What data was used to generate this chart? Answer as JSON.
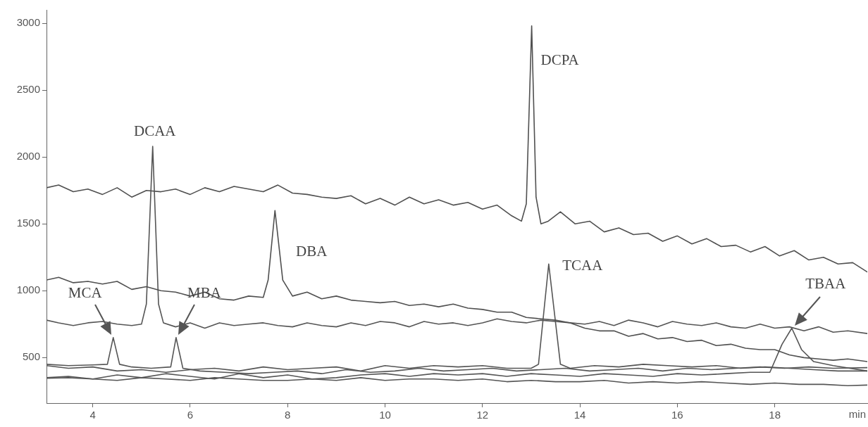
{
  "chart_data": {
    "type": "line",
    "xlabel": "min",
    "xlim": [
      3.05,
      19.9
    ],
    "ylim": [
      160,
      3100
    ],
    "xticks": [
      4,
      6,
      8,
      10,
      12,
      14,
      16,
      18
    ],
    "yticks": [
      500,
      1000,
      1500,
      2000,
      2500,
      3000
    ],
    "grid": false,
    "legend": false,
    "marker": "none",
    "line_style": "solid",
    "series": [
      {
        "color": "#505050",
        "x": [
          3.05,
          3.3,
          3.6,
          3.9,
          4.2,
          4.5,
          4.8,
          5.1,
          5.4,
          5.7,
          6,
          6.3,
          6.6,
          6.9,
          7.2,
          7.5,
          7.8,
          8.1,
          8.4,
          8.7,
          9,
          9.3,
          9.6,
          9.9,
          10.2,
          10.5,
          10.8,
          11.1,
          11.4,
          11.7,
          12,
          12.3,
          12.6,
          12.8,
          12.9,
          13.01,
          13.1,
          13.2,
          13.35,
          13.6,
          13.9,
          14.2,
          14.5,
          14.8,
          15.1,
          15.4,
          15.7,
          16,
          16.3,
          16.6,
          16.9,
          17.2,
          17.5,
          17.8,
          18.1,
          18.4,
          18.7,
          19,
          19.3,
          19.6,
          19.9
        ],
        "values": [
          1770,
          1790,
          1740,
          1760,
          1720,
          1770,
          1700,
          1750,
          1740,
          1760,
          1720,
          1770,
          1740,
          1780,
          1760,
          1740,
          1790,
          1730,
          1720,
          1700,
          1690,
          1710,
          1650,
          1690,
          1640,
          1700,
          1650,
          1680,
          1640,
          1660,
          1610,
          1640,
          1560,
          1520,
          1650,
          2980,
          1700,
          1500,
          1520,
          1590,
          1500,
          1520,
          1440,
          1470,
          1420,
          1430,
          1370,
          1410,
          1350,
          1390,
          1330,
          1340,
          1290,
          1330,
          1260,
          1300,
          1230,
          1250,
          1200,
          1210,
          1140
        ]
      },
      {
        "color": "#505050",
        "x": [
          3.05,
          3.3,
          3.6,
          3.9,
          4.2,
          4.5,
          4.8,
          5.1,
          5.4,
          5.7,
          6,
          6.3,
          6.6,
          6.9,
          7.2,
          7.5,
          7.6,
          7.74,
          7.9,
          8.1,
          8.4,
          8.7,
          9,
          9.3,
          9.6,
          9.9,
          10.2,
          10.5,
          10.8,
          11.1,
          11.4,
          11.7,
          12,
          12.3,
          12.6,
          12.9,
          13.2,
          13.5,
          13.8,
          14.1,
          14.4,
          14.7,
          15,
          15.3,
          15.6,
          15.9,
          16.2,
          16.5,
          16.8,
          17.1,
          17.4,
          17.7,
          18,
          18.3,
          18.6,
          18.9,
          19.2,
          19.5,
          19.9
        ],
        "values": [
          1080,
          1100,
          1060,
          1070,
          1050,
          1070,
          1010,
          1030,
          1000,
          990,
          960,
          990,
          940,
          930,
          960,
          950,
          1080,
          1600,
          1080,
          960,
          990,
          940,
          960,
          930,
          920,
          910,
          920,
          890,
          900,
          880,
          900,
          870,
          860,
          840,
          840,
          800,
          790,
          780,
          760,
          720,
          700,
          700,
          660,
          680,
          640,
          650,
          620,
          630,
          590,
          600,
          570,
          560,
          560,
          520,
          500,
          490,
          480,
          490,
          470
        ]
      },
      {
        "color": "#555555",
        "x": [
          3.05,
          3.3,
          3.6,
          3.9,
          4.2,
          4.5,
          4.8,
          5.0,
          5.1,
          5.23,
          5.35,
          5.45,
          5.7,
          6,
          6.3,
          6.6,
          6.9,
          7.2,
          7.5,
          7.8,
          8.1,
          8.4,
          8.7,
          9,
          9.3,
          9.6,
          9.9,
          10.2,
          10.5,
          10.8,
          11.1,
          11.4,
          11.7,
          12,
          12.3,
          12.6,
          12.9,
          13.2,
          13.5,
          13.8,
          14.1,
          14.4,
          14.7,
          15,
          15.3,
          15.6,
          15.9,
          16.2,
          16.5,
          16.8,
          17.1,
          17.4,
          17.7,
          18,
          18.3,
          18.6,
          18.9,
          19.2,
          19.5,
          19.9
        ],
        "values": [
          780,
          760,
          740,
          760,
          770,
          750,
          740,
          750,
          900,
          2080,
          900,
          760,
          730,
          760,
          720,
          760,
          740,
          750,
          760,
          740,
          730,
          760,
          740,
          730,
          760,
          740,
          770,
          760,
          730,
          770,
          750,
          760,
          740,
          760,
          790,
          770,
          760,
          780,
          770,
          760,
          750,
          770,
          740,
          780,
          760,
          730,
          770,
          750,
          740,
          760,
          730,
          720,
          750,
          720,
          730,
          700,
          730,
          690,
          700,
          680
        ]
      },
      {
        "color": "#555555",
        "x": [
          3.05,
          3.5,
          4,
          4.3,
          4.42,
          4.55,
          4.8,
          5.2,
          5.6,
          5.71,
          5.85,
          6.2,
          6.7,
          7.2,
          7.7,
          8.2,
          8.7,
          9.2,
          9.7,
          10.2,
          10.7,
          11.2,
          11.7,
          12.2,
          12.7,
          13.2,
          13.7,
          14.2,
          14.7,
          15.2,
          15.7,
          16.2,
          16.7,
          17.2,
          17.7,
          18.2,
          18.7,
          19.2,
          19.9
        ],
        "values": [
          450,
          440,
          445,
          450,
          650,
          450,
          430,
          420,
          430,
          650,
          420,
          400,
          390,
          380,
          390,
          400,
          380,
          410,
          390,
          400,
          420,
          400,
          410,
          420,
          400,
          410,
          420,
          400,
          410,
          420,
          400,
          420,
          410,
          420,
          430,
          420,
          430,
          420,
          425
        ]
      },
      {
        "color": "#555555",
        "x": [
          3.05,
          3.5,
          4,
          4.5,
          5,
          5.5,
          6,
          6.5,
          7,
          7.5,
          8,
          8.5,
          9,
          9.5,
          10,
          10.5,
          11,
          11.5,
          12,
          12.5,
          13,
          13.15,
          13.36,
          13.6,
          13.8,
          14.3,
          14.8,
          15.3,
          15.8,
          16.3,
          16.8,
          17.3,
          17.8,
          18.3,
          18.8,
          19.3,
          19.9
        ],
        "values": [
          440,
          420,
          430,
          400,
          410,
          390,
          410,
          420,
          400,
          430,
          410,
          420,
          430,
          400,
          440,
          420,
          440,
          430,
          440,
          420,
          420,
          450,
          1200,
          450,
          420,
          440,
          430,
          450,
          440,
          430,
          440,
          420,
          430,
          420,
          410,
          400,
          400
        ]
      },
      {
        "color": "#555555",
        "x": [
          3.05,
          3.5,
          4,
          4.5,
          5,
          5.5,
          6,
          6.5,
          7,
          7.5,
          8,
          8.5,
          9,
          9.5,
          10,
          10.5,
          11,
          11.5,
          12,
          12.5,
          13,
          13.5,
          14,
          14.5,
          15,
          15.5,
          16,
          16.5,
          17,
          17.5,
          17.9,
          18.15,
          18.35,
          18.55,
          18.8,
          19.2,
          19.9
        ],
        "values": [
          350,
          360,
          340,
          370,
          350,
          380,
          360,
          340,
          380,
          350,
          370,
          340,
          350,
          370,
          380,
          360,
          380,
          370,
          380,
          360,
          380,
          370,
          360,
          380,
          370,
          360,
          380,
          370,
          380,
          390,
          390,
          600,
          720,
          560,
          470,
          440,
          400
        ]
      },
      {
        "color": "#555555",
        "x": [
          3.05,
          3.5,
          4,
          4.5,
          5,
          5.5,
          6,
          6.5,
          7,
          7.5,
          8,
          8.5,
          9,
          9.5,
          10,
          10.5,
          11,
          11.5,
          12,
          12.5,
          13,
          13.5,
          14,
          14.5,
          15,
          15.5,
          16,
          16.5,
          17,
          17.5,
          18,
          18.5,
          19,
          19.5,
          19.9
        ],
        "values": [
          345,
          350,
          340,
          330,
          350,
          340,
          330,
          350,
          340,
          330,
          330,
          340,
          330,
          350,
          330,
          340,
          340,
          330,
          340,
          320,
          330,
          320,
          320,
          330,
          310,
          320,
          310,
          320,
          310,
          300,
          310,
          300,
          300,
          290,
          295
        ]
      }
    ],
    "annotations": [
      {
        "text": "MCA",
        "x": 4.42,
        "y": 650
      },
      {
        "text": "DCAA",
        "x": 5.23,
        "y": 2080
      },
      {
        "text": "MBA",
        "x": 5.71,
        "y": 650
      },
      {
        "text": "DBA",
        "x": 7.74,
        "y": 1600
      },
      {
        "text": "DCPA",
        "x": 13.01,
        "y": 2980
      },
      {
        "text": "TCAA",
        "x": 13.36,
        "y": 1200
      },
      {
        "text": "TBAA",
        "x": 18.35,
        "y": 720
      }
    ]
  }
}
